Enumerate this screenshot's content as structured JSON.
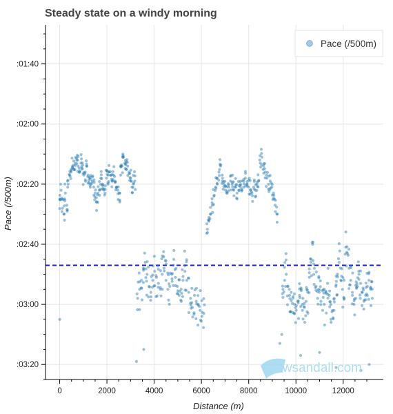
{
  "chart_data": {
    "type": "scatter",
    "title": "Steady state on a windy morning",
    "xlabel": "Distance (m)",
    "ylabel": "Pace (/500m)",
    "xlim": [
      -600,
      13700
    ],
    "ylim": [
      87,
      205
    ],
    "y_inverted": true,
    "x_ticks": [
      0,
      2000,
      4000,
      6000,
      8000,
      10000,
      12000
    ],
    "x_tick_labels": [
      "0",
      "2000",
      "4000",
      "6000",
      "8000",
      "10000",
      "12000"
    ],
    "y_ticks": [
      80,
      100,
      120,
      140,
      160,
      180,
      200
    ],
    "y_tick_labels": [
      ":01:20",
      ":01:40",
      ":02:00",
      ":02:20",
      ":02:40",
      ":03:00",
      ":03:20"
    ],
    "grid": true,
    "legend": {
      "placement": "top-right",
      "entries": [
        {
          "name": "Pace (/500m)",
          "color": "#1f77b4"
        }
      ]
    },
    "reference_line": {
      "y": 167,
      "color": "#1a1adc",
      "style": "dashed"
    },
    "point_color": "#1f77b4",
    "series": [
      {
        "name": "Pace (/500m)",
        "segments": [
          {
            "x": [
              0,
              60,
              120,
              180,
              240,
              300,
              360,
              420,
              480,
              540,
              600,
              660,
              720,
              780,
              840,
              900,
              960,
              1020,
              1080,
              1140,
              1200,
              1260,
              1320,
              1380,
              1440,
              1500,
              1560,
              1620,
              1680,
              1740,
              1800,
              1860,
              1920,
              1980,
              2040,
              2100,
              2160,
              2220,
              2280,
              2340,
              2400,
              2460,
              2520,
              2580,
              2640,
              2700,
              2760,
              2820,
              2880,
              2940,
              3000,
              3060,
              3120,
              3180
            ],
            "y": [
              145,
              142,
              148,
              150,
              143,
              147,
              140,
              137,
              136,
              134,
              135,
              133,
              132,
              134,
              136,
              133,
              135,
              137,
              136,
              134,
              137,
              138,
              140,
              139,
              141,
              143,
              146,
              143,
              142,
              138,
              140,
              142,
              143,
              138,
              140,
              136,
              137,
              139,
              137,
              139,
              141,
              142,
              143,
              137,
              134,
              131,
              133,
              135,
              134,
              136,
              138,
              141,
              140,
              139
            ]
          },
          {
            "x": [
              3300,
              3380,
              3460,
              3540,
              3620,
              3700,
              3780,
              3860,
              3940,
              4020,
              4100,
              4180,
              4260,
              4340,
              4420,
              4500,
              4580,
              4660,
              4740,
              4820,
              4900,
              4980,
              5060,
              5140,
              5220,
              5300,
              5380,
              5460,
              5540,
              5620,
              5700,
              5780,
              5860,
              5940,
              6020,
              6100
            ],
            "y": [
              178,
              175,
              172,
              168,
              166,
              170,
              174,
              176,
              172,
              169,
              171,
              173,
              175,
              170,
              168,
              172,
              175,
              174,
              170,
              167,
              171,
              174,
              177,
              175,
              172,
              169,
              172,
              176,
              178,
              181,
              177,
              179,
              180,
              182,
              184,
              183
            ]
          },
          {
            "x": [
              6250,
              6320,
              6390,
              6460,
              6530,
              6600,
              6670,
              6740,
              6810,
              6880,
              6950,
              7020,
              7090,
              7160,
              7230,
              7300,
              7370,
              7440,
              7510,
              7580,
              7650,
              7720,
              7790,
              7860,
              7930,
              8000,
              8070,
              8140,
              8210,
              8280,
              8350,
              8420,
              8490,
              8560,
              8630,
              8700,
              8770,
              8840,
              8910,
              8980,
              9050,
              9120,
              9190
            ],
            "y": [
              155,
              152,
              150,
              147,
              144,
              141,
              138,
              136,
              134,
              137,
              140,
              142,
              143,
              141,
              139,
              140,
              142,
              141,
              143,
              142,
              141,
              142,
              139,
              138,
              140,
              141,
              142,
              143,
              141,
              142,
              140,
              139,
              133,
              131,
              134,
              136,
              138,
              140,
              139,
              141,
              143,
              147,
              150
            ]
          },
          {
            "x": [
              9450,
              9520,
              9590,
              9660,
              9730,
              9800,
              9870,
              9940,
              10010,
              10080,
              10150,
              10220,
              10290,
              10360,
              10430,
              10500,
              10570,
              10640,
              10710,
              10780,
              10850,
              10920,
              10990,
              11060,
              11130,
              11200,
              11270,
              11340,
              11410,
              11480,
              11550,
              11620,
              11690,
              11760,
              11830,
              11900,
              11970,
              12040,
              12110,
              12180,
              12250,
              12320,
              12390,
              12460,
              12530,
              12600,
              12670,
              12740,
              12810,
              12880,
              12950,
              13020,
              13090,
              13160,
              13230
            ],
            "y": [
              175,
              172,
              170,
              174,
              177,
              176,
              178,
              180,
              182,
              179,
              177,
              175,
              178,
              181,
              179,
              176,
              171,
              165,
              160,
              168,
              174,
              178,
              176,
              179,
              182,
              180,
              176,
              173,
              177,
              180,
              182,
              178,
              174,
              170,
              166,
              172,
              175,
              178,
              161,
              163,
              168,
              172,
              176,
              180,
              178,
              174,
              170,
              173,
              176,
              179,
              177,
              174,
              172,
              175,
              178
            ]
          }
        ],
        "outliers": {
          "x": [
            0,
            3250,
            3560,
            9320,
            9400,
            10200,
            11000,
            11700,
            12750,
            13100
          ],
          "y": [
            185,
            199,
            195,
            193,
            190,
            197,
            196,
            201,
            202,
            200
          ]
        }
      }
    ]
  },
  "watermark": {
    "text": "rowsandall.com",
    "color": "#9fd8f0"
  }
}
